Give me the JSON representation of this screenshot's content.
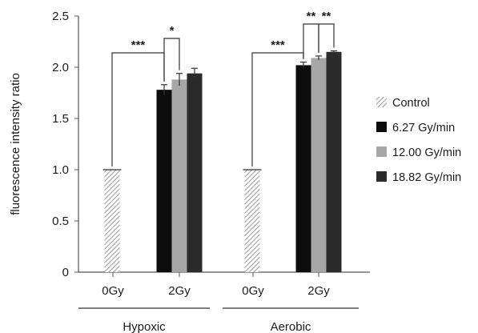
{
  "chart_data": {
    "type": "bar",
    "ylabel": "fluorescence intensity ratio",
    "ylim": [
      0,
      2.5
    ],
    "yticks": [
      "0",
      "0.5",
      "1.0",
      "1.5",
      "2.0",
      "2.5"
    ],
    "groups": [
      {
        "label": "Hypoxic",
        "categories": [
          "0Gy",
          "2Gy"
        ]
      },
      {
        "label": "Aerobic",
        "categories": [
          "0Gy",
          "2Gy"
        ]
      }
    ],
    "series": [
      {
        "name": "Control",
        "color": "#c8c8c8",
        "pattern": "diagonal-hatch",
        "values": [
          1.0,
          null,
          1.0,
          null
        ],
        "errors": [
          0,
          null,
          0,
          null
        ]
      },
      {
        "name": "6.27 Gy/min",
        "color": "#0d0d0d",
        "values": [
          null,
          1.78,
          null,
          2.02
        ],
        "errors": [
          null,
          0.05,
          null,
          0.03
        ]
      },
      {
        "name": "12.00 Gy/min",
        "color": "#a6a6a6",
        "values": [
          null,
          1.88,
          null,
          2.09
        ],
        "errors": [
          null,
          0.06,
          null,
          0.02
        ]
      },
      {
        "name": "18.82 Gy/min",
        "color": "#2b2b2b",
        "values": [
          null,
          1.94,
          null,
          2.15
        ],
        "errors": [
          null,
          0.05,
          null,
          0.01
        ]
      }
    ],
    "significance": [
      {
        "label": "***",
        "group": 0,
        "from": "Control",
        "to": "6.27 Gy/min"
      },
      {
        "label": "*",
        "group": 0,
        "from": "6.27 Gy/min",
        "to": "12.00 Gy/min"
      },
      {
        "label": "***",
        "group": 1,
        "from": "Control",
        "to": "6.27 Gy/min"
      },
      {
        "label": "**",
        "group": 1,
        "from": "6.27 Gy/min",
        "to": "12.00 Gy/min"
      },
      {
        "label": "**",
        "group": 1,
        "from": "12.00 Gy/min",
        "to": "18.82 Gy/min"
      }
    ],
    "legend_position": "right"
  }
}
